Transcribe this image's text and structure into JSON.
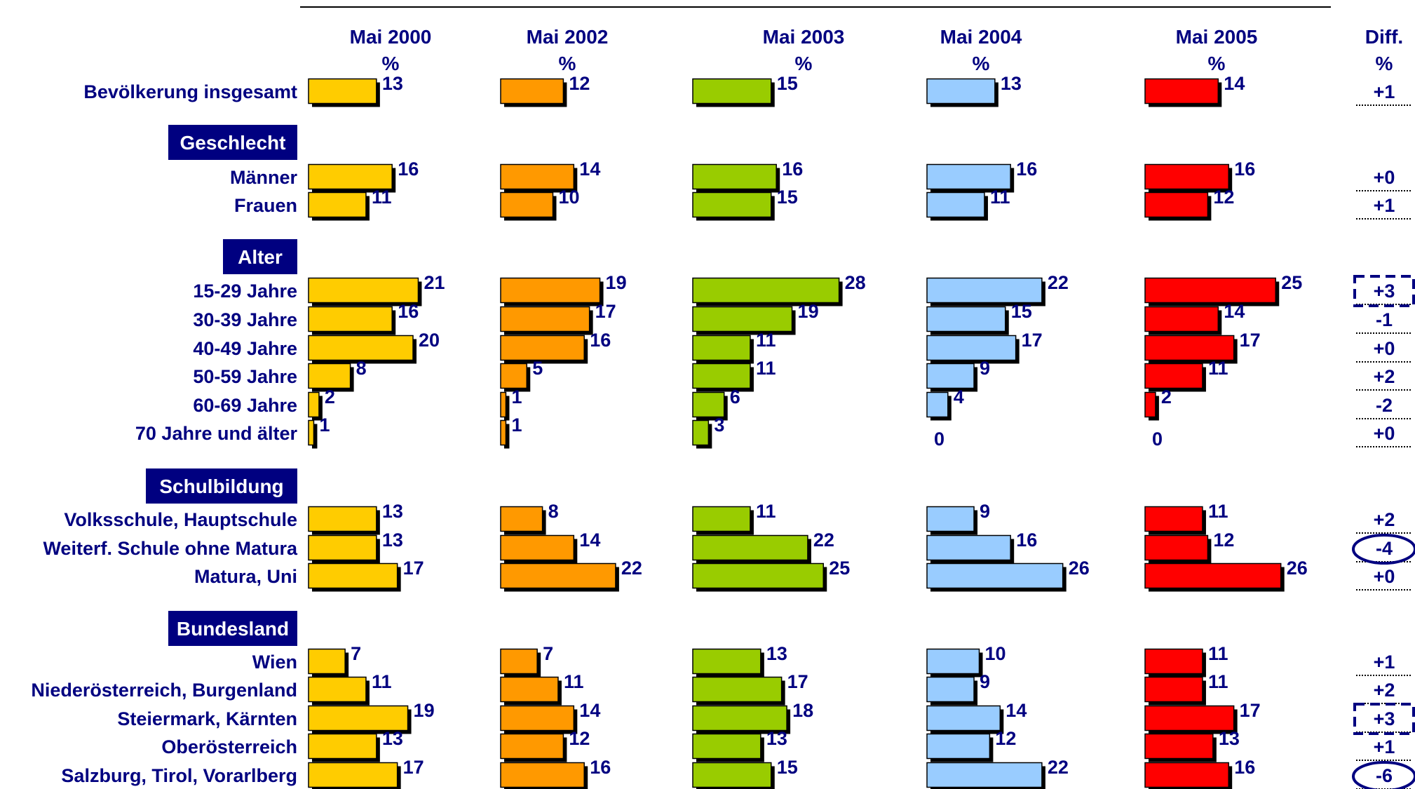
{
  "chart_data": {
    "type": "bar",
    "orientation": "horizontal",
    "panels": [
      {
        "title": "Mai 2000",
        "unit": "%",
        "color": "#FFCC00"
      },
      {
        "title": "Mai 2002",
        "unit": "%",
        "color": "#FF9900"
      },
      {
        "title": "Mai 2003",
        "unit": "%",
        "color": "#99CC00"
      },
      {
        "title": "Mai 2004",
        "unit": "%",
        "color": "#99CCFF"
      },
      {
        "title": "Mai 2005",
        "unit": "%",
        "color": "#FF0000"
      }
    ],
    "diff_column": {
      "title": "Diff.",
      "unit": "%"
    },
    "groups": [
      {
        "section": "",
        "rows": [
          {
            "label": "Bevölkerung insgesamt",
            "values": [
              13,
              12,
              15,
              13,
              14
            ],
            "diff": "+1",
            "mark": ""
          }
        ]
      },
      {
        "section": "Geschlecht",
        "rows": [
          {
            "label": "Männer",
            "values": [
              16,
              14,
              16,
              16,
              16
            ],
            "diff": "+0",
            "mark": ""
          },
          {
            "label": "Frauen",
            "values": [
              11,
              10,
              15,
              11,
              12
            ],
            "diff": "+1",
            "mark": ""
          }
        ]
      },
      {
        "section": "Alter",
        "rows": [
          {
            "label": "15-29 Jahre",
            "values": [
              21,
              19,
              28,
              22,
              25
            ],
            "diff": "+3",
            "mark": "dashed-box"
          },
          {
            "label": "30-39 Jahre",
            "values": [
              16,
              17,
              19,
              15,
              14
            ],
            "diff": "-1",
            "mark": ""
          },
          {
            "label": "40-49 Jahre",
            "values": [
              20,
              16,
              11,
              17,
              17
            ],
            "diff": "+0",
            "mark": ""
          },
          {
            "label": "50-59 Jahre",
            "values": [
              8,
              5,
              11,
              9,
              11
            ],
            "diff": "+2",
            "mark": ""
          },
          {
            "label": "60-69 Jahre",
            "values": [
              2,
              1,
              6,
              4,
              2
            ],
            "diff": "-2",
            "mark": ""
          },
          {
            "label": "70 Jahre und älter",
            "values": [
              1,
              1,
              3,
              0,
              0
            ],
            "diff": "+0",
            "mark": ""
          }
        ]
      },
      {
        "section": "Schulbildung",
        "rows": [
          {
            "label": "Volksschule, Hauptschule",
            "values": [
              13,
              8,
              11,
              9,
              11
            ],
            "diff": "+2",
            "mark": ""
          },
          {
            "label": "Weiterf. Schule ohne Matura",
            "values": [
              13,
              14,
              22,
              16,
              12
            ],
            "diff": "-4",
            "mark": "ellipse"
          },
          {
            "label": "Matura, Uni",
            "values": [
              17,
              22,
              25,
              26,
              26
            ],
            "diff": "+0",
            "mark": ""
          }
        ]
      },
      {
        "section": "Bundesland",
        "rows": [
          {
            "label": "Wien",
            "values": [
              7,
              7,
              13,
              10,
              11
            ],
            "diff": "+1",
            "mark": ""
          },
          {
            "label": "Niederösterreich, Burgenland",
            "values": [
              11,
              11,
              17,
              9,
              11
            ],
            "diff": "+2",
            "mark": ""
          },
          {
            "label": "Steiermark, Kärnten",
            "values": [
              19,
              14,
              18,
              14,
              17
            ],
            "diff": "+3",
            "mark": "dashed-box"
          },
          {
            "label": "Oberösterreich",
            "values": [
              13,
              12,
              13,
              12,
              13
            ],
            "diff": "+1",
            "mark": ""
          },
          {
            "label": "Salzburg, Tirol, Vorarlberg",
            "values": [
              17,
              16,
              15,
              22,
              16
            ],
            "diff": "-6",
            "mark": "ellipse"
          }
        ]
      }
    ],
    "colors": {
      "text": "#000080",
      "section_bg": "#000080",
      "section_text": "#FFFFFF",
      "outline": "#000000",
      "shadow": "#000000"
    },
    "grid": false,
    "legend": "none"
  }
}
